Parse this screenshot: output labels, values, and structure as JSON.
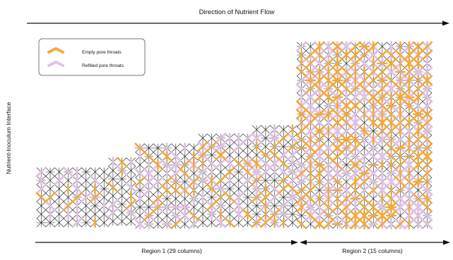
{
  "diagram": {
    "title": "Direction of Nutrient Flow",
    "side_label": "Nutrient-Inoculum Interface",
    "legend": [
      {
        "label": "Empty pore throats",
        "color": "#f2a93b"
      },
      {
        "label": "Refilled pore throats",
        "color": "#e0c3e3"
      }
    ],
    "regions": [
      {
        "label": "Region 1  (29 columns)",
        "columns": 29
      },
      {
        "label": "Region 2  (15 columns)",
        "columns": 15
      }
    ],
    "network_line_color": "#1a1a1a",
    "icons": [
      "arrow-right-icon",
      "double-arrow-icon"
    ]
  }
}
